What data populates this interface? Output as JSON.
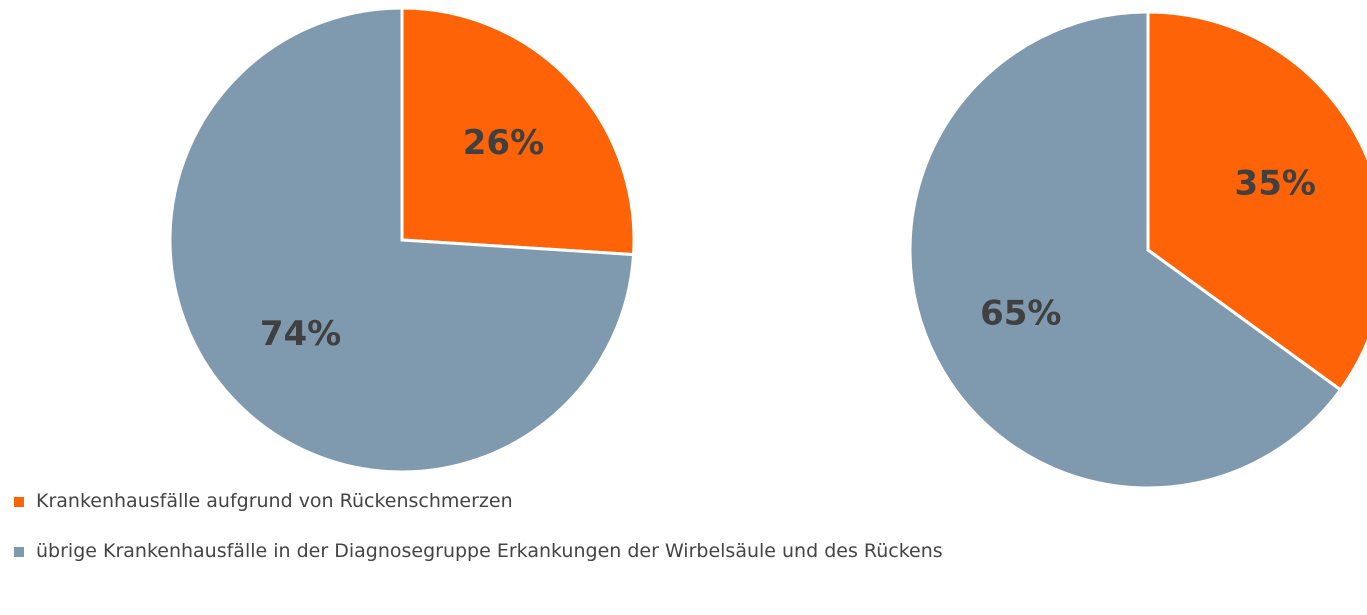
{
  "chart_data": [
    {
      "type": "pie",
      "values": [
        26,
        74
      ],
      "value_labels": [
        "26%",
        "74%"
      ],
      "colors": [
        "#ff6308",
        "#7f9aae"
      ]
    },
    {
      "type": "pie",
      "values": [
        35,
        65
      ],
      "value_labels": [
        "35%",
        "65%"
      ],
      "colors": [
        "#ff6308",
        "#7f9aae"
      ]
    }
  ],
  "legend": [
    {
      "name": "Krankenhausfälle aufgrund von Rückenschmerzen",
      "color": "#ff6308"
    },
    {
      "name": "übrige Krankenhausfälle in der Diagnosegruppe Erkankungen der Wirbelsäule und des Rückens",
      "color": "#7f9aae"
    }
  ]
}
